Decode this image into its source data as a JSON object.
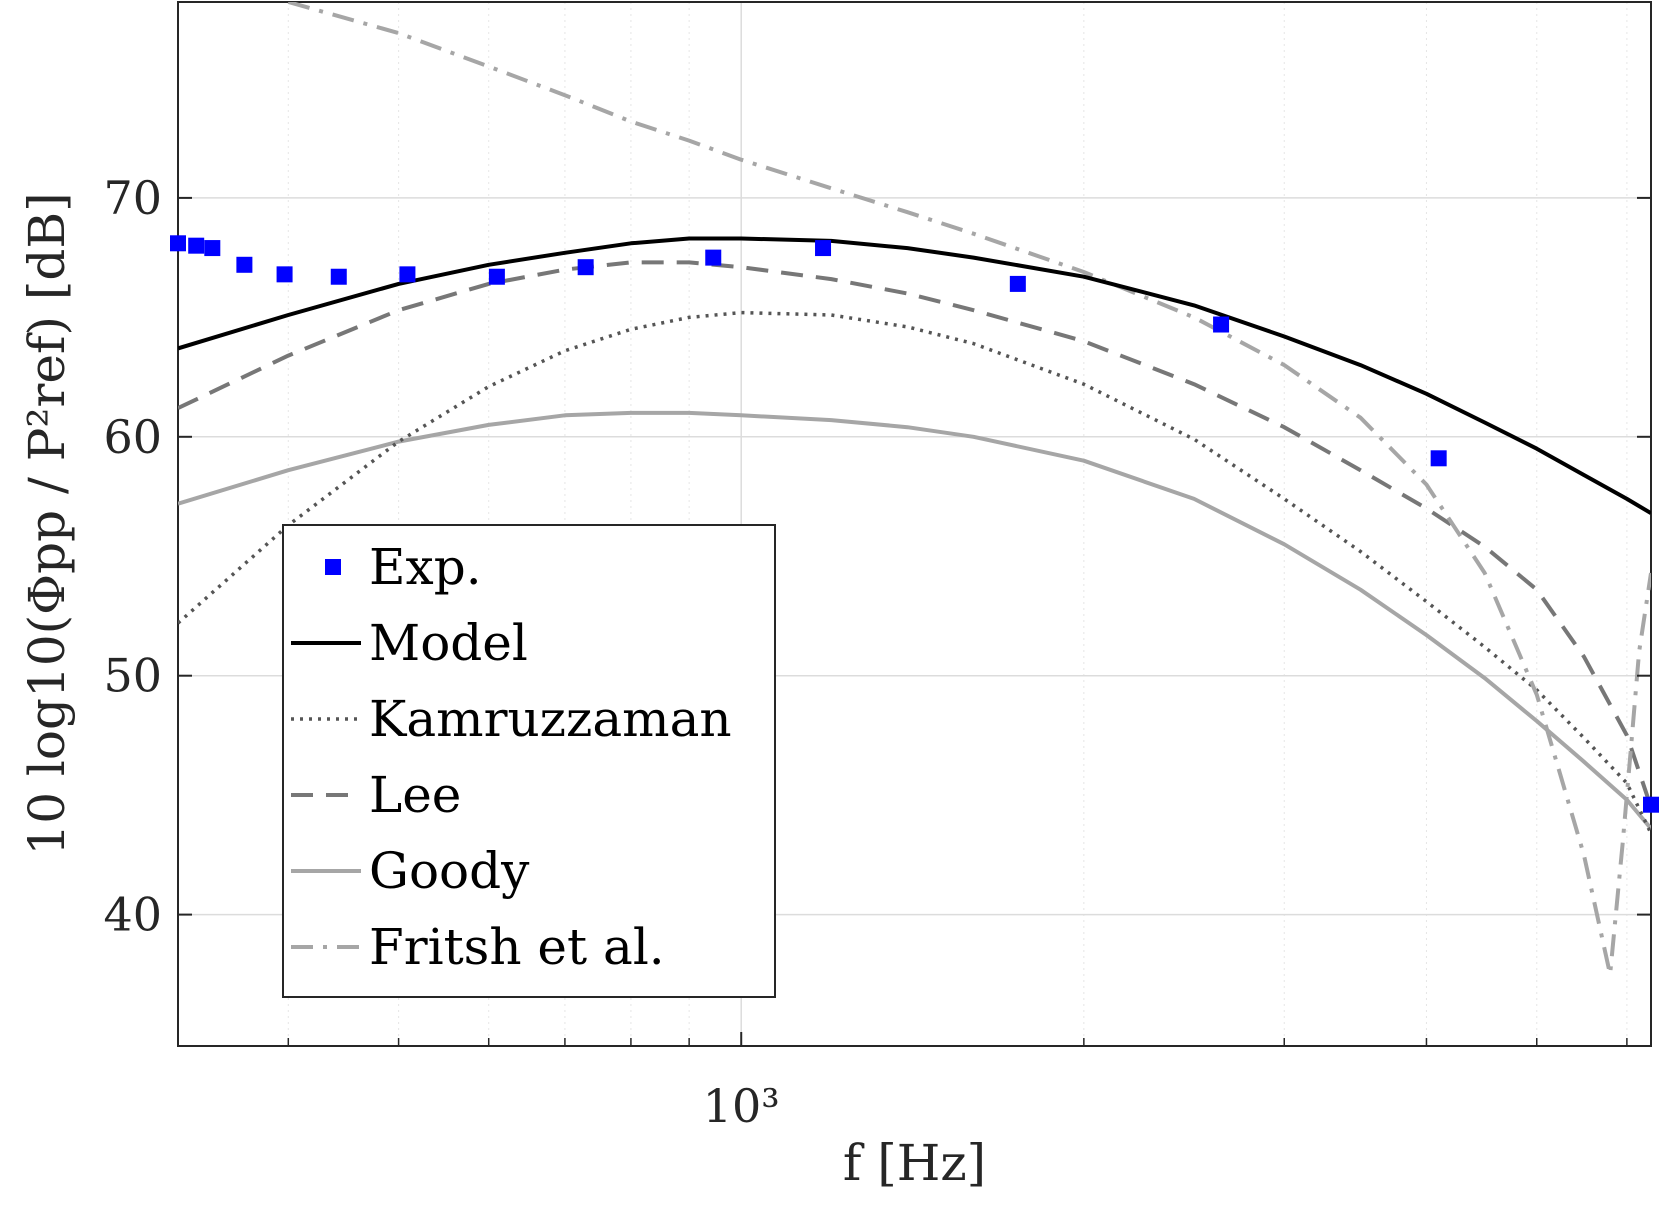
{
  "chart_data": {
    "type": "line",
    "xscale": "log",
    "xlim": [
      320,
      6300
    ],
    "ylim": [
      34.5,
      78.2
    ],
    "grid": true,
    "xlabel": "f  [Hz]",
    "ylabel": "10 log10(Φpp / P²ref)  [dB]",
    "xticks": [
      {
        "value": 1000,
        "label": "10³"
      }
    ],
    "yticks": [
      {
        "value": 40,
        "label": "40"
      },
      {
        "value": 50,
        "label": "50"
      },
      {
        "value": 60,
        "label": "60"
      },
      {
        "value": 70,
        "label": "70"
      }
    ],
    "legend_position": "lower-left",
    "series": [
      {
        "name": "Exp.",
        "kind": "markers",
        "color": "#0000ff",
        "x": [
          320,
          332,
          343,
          366,
          397,
          443,
          509,
          610,
          730,
          945,
          1180,
          1750,
          2640,
          4100,
          6300
        ],
        "y": [
          68.1,
          68.0,
          67.9,
          67.2,
          66.8,
          66.7,
          66.8,
          66.7,
          67.1,
          67.5,
          67.9,
          66.4,
          64.7,
          59.1,
          44.6
        ]
      },
      {
        "name": "Model",
        "kind": "line",
        "color": "#000000",
        "dash": "solid",
        "x": [
          320,
          400,
          500,
          600,
          700,
          800,
          900,
          1000,
          1200,
          1400,
          1600,
          2000,
          2500,
          3000,
          3500,
          4000,
          4500,
          5000,
          5500,
          6000,
          6300
        ],
        "y": [
          63.7,
          65.1,
          66.4,
          67.2,
          67.7,
          68.1,
          68.3,
          68.3,
          68.2,
          67.9,
          67.5,
          66.7,
          65.5,
          64.2,
          63.0,
          61.8,
          60.6,
          59.5,
          58.4,
          57.4,
          56.8
        ]
      },
      {
        "name": "Kamruzzaman",
        "kind": "line",
        "color": "#555555",
        "dash": "dotted",
        "x": [
          320,
          400,
          500,
          600,
          700,
          800,
          900,
          1000,
          1200,
          1400,
          1600,
          2000,
          2500,
          3000,
          3500,
          4000,
          4500,
          5000,
          5500,
          6000,
          6300
        ],
        "y": [
          52.2,
          56.3,
          59.8,
          62.1,
          63.6,
          64.5,
          65.0,
          65.2,
          65.1,
          64.6,
          63.9,
          62.2,
          59.9,
          57.4,
          55.2,
          53.1,
          51.2,
          49.4,
          47.4,
          45.5,
          43.4
        ]
      },
      {
        "name": "Lee",
        "kind": "line",
        "color": "#777777",
        "dash": "dashed",
        "x": [
          320,
          400,
          500,
          600,
          700,
          800,
          900,
          1000,
          1200,
          1400,
          1600,
          2000,
          2500,
          3000,
          3500,
          4000,
          4500,
          5000,
          5500,
          6000,
          6300
        ],
        "y": [
          61.2,
          63.4,
          65.3,
          66.4,
          67.0,
          67.3,
          67.3,
          67.1,
          66.6,
          66.0,
          65.3,
          64.0,
          62.2,
          60.4,
          58.6,
          57.0,
          55.4,
          53.6,
          50.8,
          47.5,
          44.5
        ]
      },
      {
        "name": "Goody",
        "kind": "line",
        "color": "#a6a6a6",
        "dash": "solid",
        "x": [
          320,
          400,
          500,
          600,
          700,
          800,
          900,
          1000,
          1200,
          1400,
          1600,
          2000,
          2500,
          3000,
          3500,
          4000,
          4500,
          5000,
          5500,
          6000,
          6300
        ],
        "y": [
          57.2,
          58.6,
          59.8,
          60.5,
          60.9,
          61.0,
          61.0,
          60.9,
          60.7,
          60.4,
          60.0,
          59.0,
          57.4,
          55.5,
          53.6,
          51.7,
          49.9,
          48.1,
          46.4,
          44.8,
          43.6
        ]
      },
      {
        "name": "Fritsh et al.",
        "kind": "line",
        "color": "#a6a6a6",
        "dash": "dashdot",
        "x": [
          400,
          500,
          600,
          700,
          800,
          900,
          1000,
          1200,
          1400,
          1600,
          2000,
          2500,
          3000,
          3500,
          4000,
          4500,
          5000,
          5500,
          5800,
          5950,
          6050,
          6150,
          6300
        ],
        "y": [
          78.2,
          76.9,
          75.5,
          74.3,
          73.2,
          72.4,
          71.6,
          70.4,
          69.4,
          68.5,
          66.9,
          65.0,
          63.0,
          60.8,
          58.0,
          54.3,
          49.2,
          42.5,
          37.5,
          43.0,
          47.0,
          51.0,
          54.3
        ]
      }
    ]
  }
}
